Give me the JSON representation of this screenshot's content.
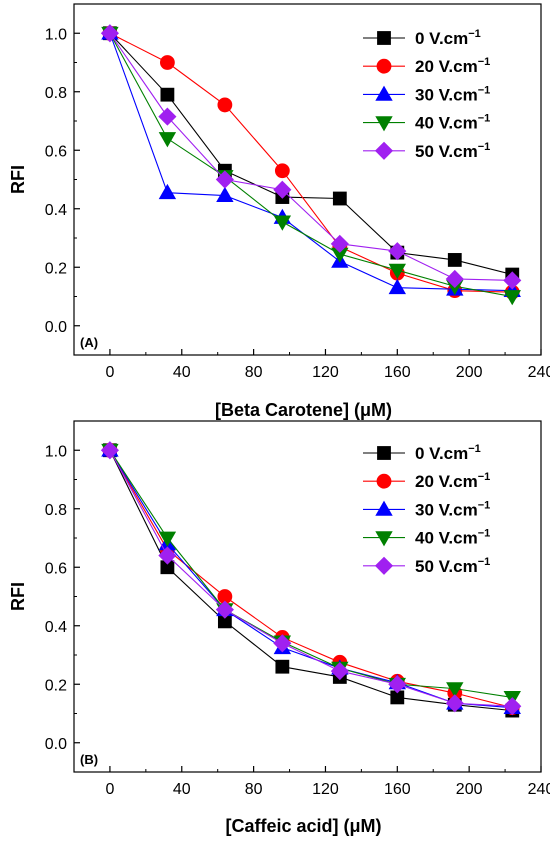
{
  "chart_data": [
    {
      "type": "line",
      "panel_label": "(A)",
      "xlabel": "[Beta Carotene] (μM)",
      "ylabel": "RFI",
      "xlim": [
        -20,
        240
      ],
      "ylim": [
        -0.1,
        1.1
      ],
      "x_ticks": [
        0,
        40,
        80,
        120,
        160,
        200,
        240
      ],
      "y_ticks": [
        0.0,
        0.2,
        0.4,
        0.6,
        0.8,
        1.0
      ],
      "x_tick_labels": [
        "0",
        "40",
        "80",
        "120",
        "160",
        "200",
        "240"
      ],
      "y_tick_labels": [
        "0.0",
        "0.2",
        "0.4",
        "0.6",
        "0.8",
        "1.0"
      ],
      "x": [
        0,
        32,
        64,
        96,
        128,
        160,
        192,
        224
      ],
      "legend_position": "top-right",
      "series": [
        {
          "name": "0 V.cm",
          "superscript": "−1",
          "color": "#000000",
          "marker": "square",
          "values": [
            1.0,
            0.79,
            0.53,
            0.44,
            0.435,
            0.25,
            0.225,
            0.175
          ]
        },
        {
          "name": "20 V.cm",
          "superscript": "−1",
          "color": "#ff0000",
          "marker": "circle",
          "values": [
            1.0,
            0.9,
            0.755,
            0.53,
            0.27,
            0.18,
            0.12,
            0.115
          ]
        },
        {
          "name": "30 V.cm",
          "superscript": "−1",
          "color": "#0000ff",
          "marker": "triangle-up",
          "values": [
            1.0,
            0.455,
            0.445,
            0.37,
            0.22,
            0.13,
            0.125,
            0.12
          ]
        },
        {
          "name": "40 V.cm",
          "superscript": "−1",
          "color": "#008000",
          "marker": "triangle-down",
          "values": [
            1.0,
            0.64,
            0.51,
            0.355,
            0.245,
            0.19,
            0.135,
            0.1
          ]
        },
        {
          "name": "50 V.cm",
          "superscript": "−1",
          "color": "#a020f0",
          "marker": "diamond",
          "values": [
            1.0,
            0.715,
            0.5,
            0.465,
            0.28,
            0.255,
            0.16,
            0.155
          ]
        }
      ]
    },
    {
      "type": "line",
      "panel_label": "(B)",
      "xlabel": "[Caffeic acid] (μM)",
      "ylabel": "RFI",
      "xlim": [
        -20,
        240
      ],
      "ylim": [
        -0.1,
        1.1
      ],
      "x_ticks": [
        0,
        40,
        80,
        120,
        160,
        200,
        240
      ],
      "y_ticks": [
        0.0,
        0.2,
        0.4,
        0.6,
        0.8,
        1.0
      ],
      "x_tick_labels": [
        "0",
        "40",
        "80",
        "120",
        "160",
        "200",
        "240"
      ],
      "y_tick_labels": [
        "0.0",
        "0.2",
        "0.4",
        "0.6",
        "0.8",
        "1.0"
      ],
      "x": [
        0,
        32,
        64,
        96,
        128,
        160,
        192,
        224
      ],
      "legend_position": "top-right",
      "series": [
        {
          "name": "0 V.cm",
          "superscript": "−1",
          "color": "#000000",
          "marker": "square",
          "values": [
            1.0,
            0.6,
            0.415,
            0.26,
            0.225,
            0.155,
            0.13,
            0.11
          ]
        },
        {
          "name": "20 V.cm",
          "superscript": "−1",
          "color": "#ff0000",
          "marker": "circle",
          "values": [
            1.0,
            0.66,
            0.5,
            0.36,
            0.275,
            0.21,
            0.17,
            0.12
          ]
        },
        {
          "name": "30 V.cm",
          "superscript": "−1",
          "color": "#0000ff",
          "marker": "triangle-up",
          "values": [
            1.0,
            0.68,
            0.455,
            0.325,
            0.255,
            0.205,
            0.135,
            0.12
          ]
        },
        {
          "name": "40 V.cm",
          "superscript": "−1",
          "color": "#008000",
          "marker": "triangle-down",
          "values": [
            1.0,
            0.7,
            0.455,
            0.345,
            0.255,
            0.2,
            0.185,
            0.155
          ]
        },
        {
          "name": "50 V.cm",
          "superscript": "−1",
          "color": "#a020f0",
          "marker": "diamond",
          "values": [
            1.0,
            0.64,
            0.455,
            0.34,
            0.245,
            0.2,
            0.135,
            0.125
          ]
        }
      ]
    }
  ]
}
